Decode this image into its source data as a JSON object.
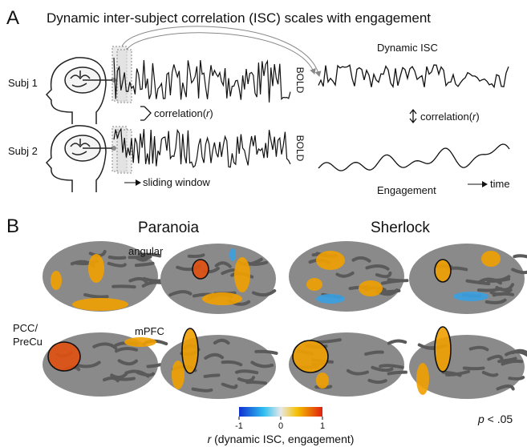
{
  "panel_a": {
    "letter": "A",
    "title": "Dynamic inter-subject correlation (ISC) scales with engagement",
    "subject_1": "Subj 1",
    "subject_2": "Subj 2",
    "bold_1": "BOLD",
    "bold_2": "BOLD",
    "correlation_left": {
      "pre": "correlation(",
      "var": "r",
      "post": ")"
    },
    "correlation_right": {
      "pre": "correlation(",
      "var": "r",
      "post": ")"
    },
    "sliding_window": "sliding window",
    "dynamic_isc": "Dynamic ISC",
    "engagement": "Engagement",
    "time": "time"
  },
  "panel_b": {
    "letter": "B",
    "story_1": "Paranoia",
    "story_2": "Sherlock",
    "angular": "angular",
    "pcc_line_1": "PCC/",
    "pcc_line_2": "PreCu",
    "mpfc": "mPFC",
    "colorbar": {
      "ticks": [
        -1,
        0,
        1
      ],
      "label_var": "r",
      "label_rest": " (dynamic ISC, engagement)"
    },
    "significance": {
      "var": "p",
      "rest": " < .05"
    }
  }
}
